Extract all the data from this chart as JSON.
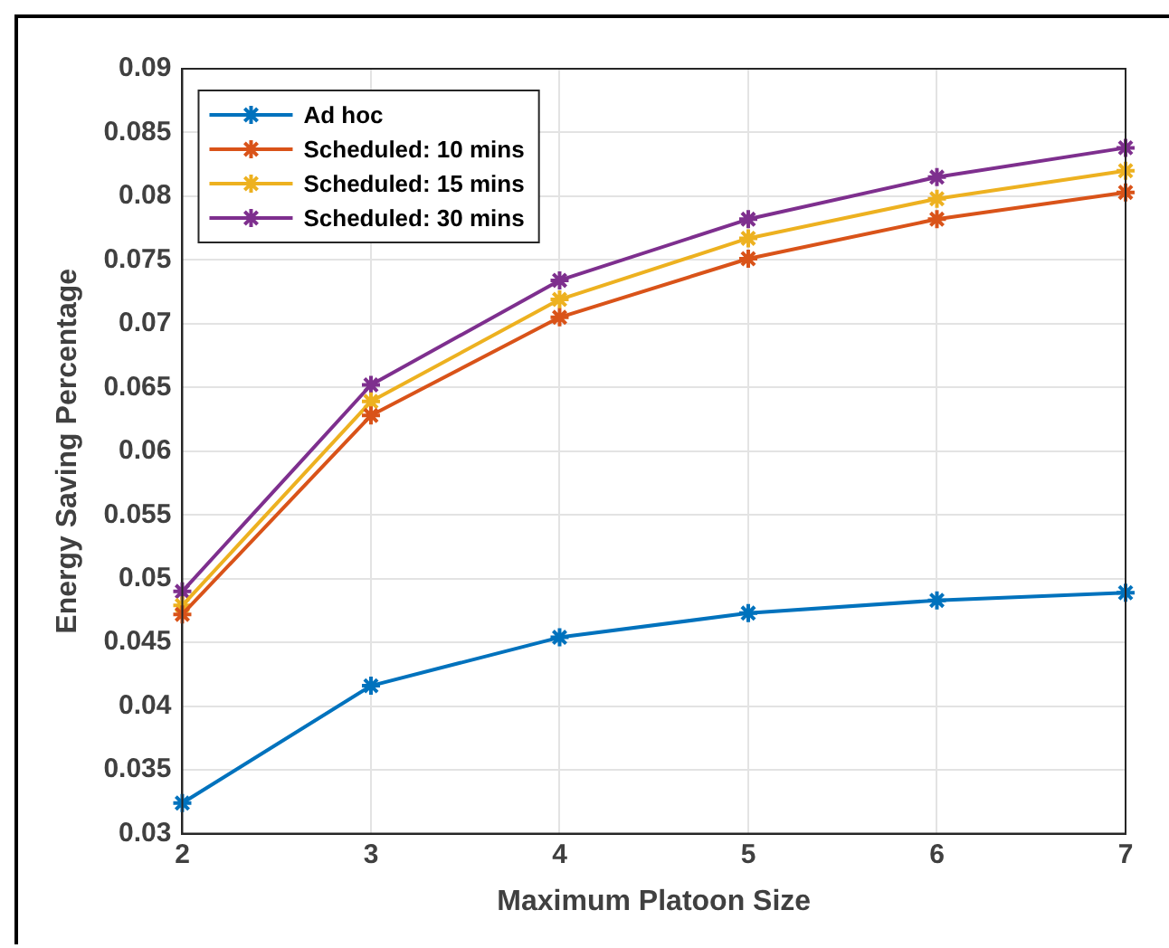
{
  "chart_data": {
    "type": "line",
    "xlabel": "Maximum Platoon Size",
    "ylabel": "Energy Saving Percentage",
    "x": [
      2,
      3,
      4,
      5,
      6,
      7
    ],
    "series": [
      {
        "name": "Ad hoc",
        "color": "#0072bd",
        "values": [
          0.0324,
          0.0416,
          0.0454,
          0.0473,
          0.0483,
          0.0489
        ]
      },
      {
        "name": "Scheduled: 10 mins",
        "color": "#d95319",
        "values": [
          0.0472,
          0.0628,
          0.0705,
          0.0751,
          0.0782,
          0.0803
        ]
      },
      {
        "name": "Scheduled: 15 mins",
        "color": "#edb120",
        "values": [
          0.0479,
          0.0639,
          0.0719,
          0.0767,
          0.0798,
          0.082
        ]
      },
      {
        "name": "Scheduled: 30 mins",
        "color": "#7e2f8e",
        "values": [
          0.049,
          0.0652,
          0.0734,
          0.0782,
          0.0815,
          0.0838
        ]
      }
    ],
    "xlim": [
      2,
      7
    ],
    "xticks": [
      2,
      3,
      4,
      5,
      6,
      7
    ],
    "ylim": [
      0.03,
      0.09
    ],
    "yticks": [
      0.03,
      0.035,
      0.04,
      0.045,
      0.05,
      0.055,
      0.06,
      0.065,
      0.07,
      0.075,
      0.08,
      0.085,
      0.09
    ],
    "grid": true,
    "legend": "top left",
    "marker": "cross",
    "line_style": "solid"
  }
}
